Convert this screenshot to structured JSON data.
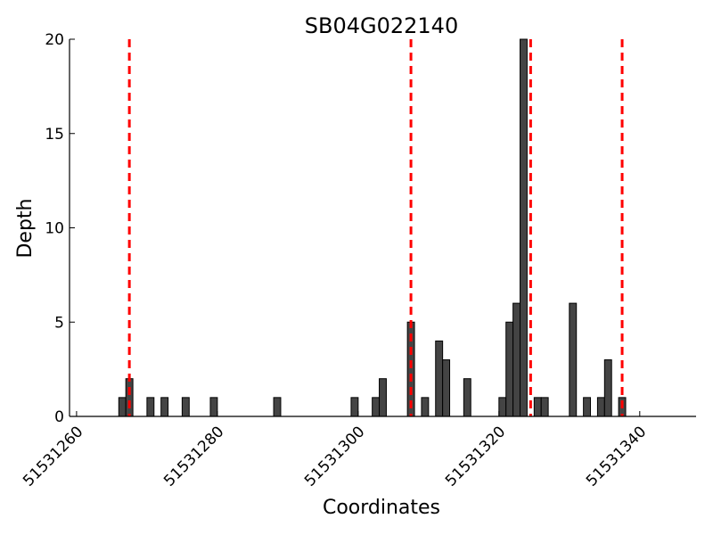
{
  "chart_data": {
    "type": "bar",
    "title": "SB04G022140",
    "xlabel": "Coordinates",
    "ylabel": "Depth",
    "xlim": [
      51531259,
      51531348
    ],
    "ylim": [
      0,
      20
    ],
    "x_ticks": [
      51531260,
      51531280,
      51531300,
      51531320,
      51531340
    ],
    "x_tick_labels": [
      "51531260",
      "51531280",
      "51531300",
      "51531320",
      "51531340"
    ],
    "y_ticks": [
      0,
      5,
      10,
      15,
      20
    ],
    "y_tick_labels": [
      "0",
      "5",
      "10",
      "15",
      "20"
    ],
    "grid": false,
    "bar_width": 1,
    "bar_color": "#444444",
    "bars": [
      {
        "x": 51531266,
        "value": 1
      },
      {
        "x": 51531267,
        "value": 2
      },
      {
        "x": 51531270,
        "value": 1
      },
      {
        "x": 51531272,
        "value": 1
      },
      {
        "x": 51531275,
        "value": 1
      },
      {
        "x": 51531279,
        "value": 1
      },
      {
        "x": 51531288,
        "value": 1
      },
      {
        "x": 51531299,
        "value": 1
      },
      {
        "x": 51531302,
        "value": 1
      },
      {
        "x": 51531303,
        "value": 2
      },
      {
        "x": 51531307,
        "value": 5
      },
      {
        "x": 51531309,
        "value": 1
      },
      {
        "x": 51531311,
        "value": 4
      },
      {
        "x": 51531312,
        "value": 3
      },
      {
        "x": 51531315,
        "value": 2
      },
      {
        "x": 51531320,
        "value": 1
      },
      {
        "x": 51531321,
        "value": 5
      },
      {
        "x": 51531322,
        "value": 6
      },
      {
        "x": 51531323,
        "value": 20
      },
      {
        "x": 51531325,
        "value": 1
      },
      {
        "x": 51531326,
        "value": 1
      },
      {
        "x": 51531330,
        "value": 6
      },
      {
        "x": 51531332,
        "value": 1
      },
      {
        "x": 51531334,
        "value": 1
      },
      {
        "x": 51531335,
        "value": 3
      },
      {
        "x": 51531337,
        "value": 1
      }
    ],
    "vlines": [
      {
        "x": 51531267.5,
        "color": "#ff0000",
        "style": "dashed"
      },
      {
        "x": 51531307.5,
        "color": "#ff0000",
        "style": "dashed"
      },
      {
        "x": 51531324.5,
        "color": "#ff0000",
        "style": "dashed"
      },
      {
        "x": 51531337.5,
        "color": "#ff0000",
        "style": "dashed"
      }
    ]
  }
}
